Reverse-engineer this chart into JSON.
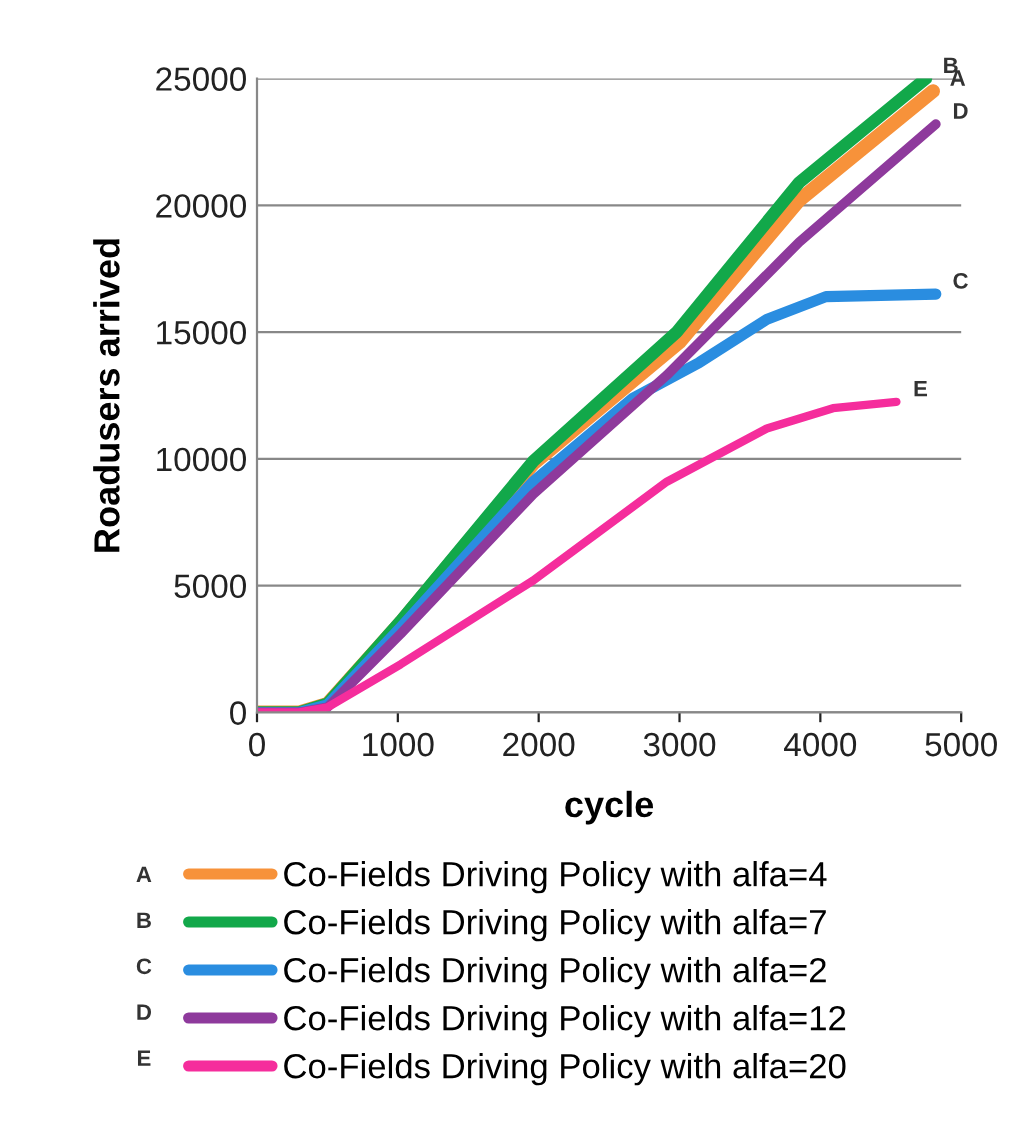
{
  "chart_data": {
    "type": "line",
    "xlabel": "cycle",
    "ylabel": "Roadusers arrived",
    "xlim": [
      0,
      5000
    ],
    "xticks": [
      0,
      1000,
      2000,
      3000,
      4000,
      5000
    ],
    "ylim": [
      0,
      25000
    ],
    "yticks": [
      0,
      5000,
      10000,
      15000,
      20000,
      25000
    ],
    "grid": "y",
    "legend": "bottom",
    "marker": "none",
    "line_style": "solid",
    "series": [
      {
        "name": "Co-Fields Driving Policy with alfa=4",
        "color": "#f7923a",
        "x": [
          0,
          300,
          500,
          1020,
          1960,
          3000,
          3850,
          4800
        ],
        "values": [
          0,
          0,
          340,
          3550,
          9800,
          14600,
          20200,
          24500
        ]
      },
      {
        "name": "Co-Fields Driving Policy with alfa=7",
        "color": "#12a84a",
        "x": [
          0,
          300,
          500,
          1020,
          1960,
          2980,
          3850,
          4750
        ],
        "values": [
          0,
          0,
          340,
          3600,
          9900,
          15000,
          20900,
          25000
        ]
      },
      {
        "name": "Co-Fields Driving Policy with alfa=2",
        "color": "#2a8de0",
        "x": [
          0,
          300,
          500,
          1020,
          1960,
          2670,
          3140,
          3620,
          4040,
          4820
        ],
        "values": [
          0,
          0,
          300,
          3350,
          9100,
          12400,
          13800,
          15500,
          16400,
          16500
        ]
      },
      {
        "name": "Co-Fields Driving Policy with alfa=12",
        "color": "#8e3a9c",
        "x": [
          0,
          300,
          500,
          1020,
          1960,
          2910,
          3850,
          4820
        ],
        "values": [
          0,
          0,
          200,
          3100,
          8600,
          13300,
          18550,
          23200
        ]
      },
      {
        "name": "Co-Fields Driving Policy with alfa=20",
        "color": "#f52d9c",
        "x": [
          0,
          300,
          500,
          1020,
          1960,
          2910,
          3620,
          4090,
          4540
        ],
        "values": [
          0,
          0,
          200,
          1900,
          5200,
          9100,
          11200,
          12000,
          12250
        ]
      }
    ],
    "annotations": [
      {
        "text": "A",
        "x": 4800,
        "y": 24500
      },
      {
        "text": "B",
        "x": 4750,
        "y": 25000
      },
      {
        "text": "C",
        "x": 4820,
        "y": 16500
      },
      {
        "text": "D",
        "x": 4820,
        "y": 23200
      },
      {
        "text": "E",
        "x": 4540,
        "y": 12250
      }
    ]
  }
}
